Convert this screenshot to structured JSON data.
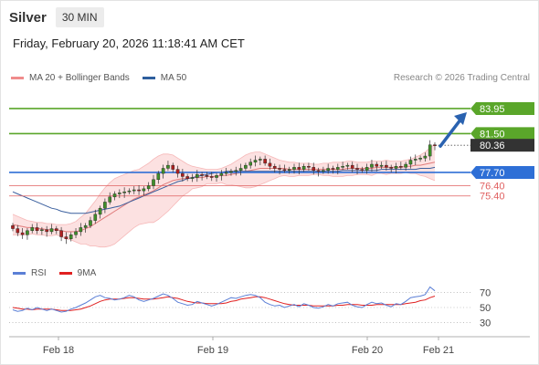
{
  "header": {
    "symbol": "Silver",
    "period": "30 MIN",
    "timestamp": "Friday, February 20, 2026 11:18:41 AM CET"
  },
  "legend": {
    "bollinger": {
      "label": "MA 20 + Bollinger Bands",
      "color": "#f08c8c"
    },
    "ma50": {
      "label": "MA 50",
      "color": "#2e5f9e"
    },
    "rsi": {
      "label": "RSI",
      "color": "#5b7fd6"
    },
    "rsi_ma": {
      "label": "9MA",
      "color": "#e02020"
    }
  },
  "copyright": "Research © 2026 Trading Central",
  "chart_data": [
    {
      "type": "candlestick",
      "title": "",
      "x_labels": [
        "Feb 18",
        "Feb 19",
        "Feb 20",
        "Feb 21"
      ],
      "ylim": [
        68.5,
        86.0
      ],
      "levels": [
        {
          "value": 83.95,
          "label": "83.95",
          "kind": "resistance",
          "color": "#5aa62a"
        },
        {
          "value": 81.5,
          "label": "81.50",
          "kind": "resistance",
          "color": "#5aa62a"
        },
        {
          "value": 80.36,
          "label": "80.36",
          "kind": "last",
          "color": "#333333"
        },
        {
          "value": 77.7,
          "label": "77.70",
          "kind": "pivot",
          "color": "#2e6fd6"
        },
        {
          "value": 76.4,
          "label": "76.40",
          "kind": "support",
          "color": "#e06060"
        },
        {
          "value": 75.4,
          "label": "75.40",
          "kind": "support",
          "color": "#e06060"
        }
      ],
      "target_arrow": {
        "from": 80.36,
        "to": 83.95
      },
      "closes": [
        72.2,
        71.8,
        71.6,
        72.0,
        72.3,
        72.0,
        72.1,
        71.9,
        72.2,
        72.0,
        71.4,
        71.2,
        71.6,
        71.9,
        72.3,
        72.5,
        73.0,
        73.6,
        74.2,
        74.8,
        75.3,
        75.6,
        75.7,
        75.8,
        75.9,
        76.0,
        75.9,
        76.1,
        76.4,
        77.0,
        77.6,
        78.1,
        78.4,
        78.0,
        77.6,
        77.3,
        77.1,
        77.2,
        77.5,
        77.4,
        77.3,
        77.2,
        77.4,
        77.6,
        77.7,
        77.8,
        77.9,
        78.1,
        78.4,
        78.7,
        78.9,
        79.0,
        78.6,
        78.3,
        78.1,
        78.0,
        77.9,
        78.0,
        78.2,
        78.0,
        78.3,
        78.2,
        77.9,
        77.8,
        77.9,
        78.1,
        78.0,
        78.2,
        78.3,
        78.4,
        78.1,
        78.0,
        77.9,
        78.2,
        78.5,
        78.3,
        78.4,
        78.2,
        78.1,
        78.3,
        78.2,
        78.5,
        78.9,
        79.0,
        79.1,
        79.3,
        80.4,
        80.36
      ],
      "ma20": [
        72.6,
        72.5,
        72.4,
        72.3,
        72.3,
        72.2,
        72.2,
        72.1,
        72.1,
        72.1,
        72.0,
        71.9,
        71.9,
        71.9,
        72.0,
        72.2,
        72.4,
        72.7,
        73.0,
        73.3,
        73.6,
        73.9,
        74.2,
        74.5,
        74.8,
        75.1,
        75.3,
        75.5,
        75.7,
        75.9,
        76.2,
        76.5,
        76.7,
        76.9,
        77.0,
        77.1,
        77.1,
        77.2,
        77.2,
        77.2,
        77.3,
        77.3,
        77.3,
        77.4,
        77.4,
        77.5,
        77.6,
        77.7,
        77.8,
        77.9,
        78.0,
        78.1,
        78.1,
        78.1,
        78.1,
        78.1,
        78.1,
        78.0,
        78.0,
        78.0,
        78.0,
        78.0,
        78.0,
        78.0,
        78.0,
        78.0,
        78.0,
        78.0,
        78.0,
        78.1,
        78.1,
        78.1,
        78.1,
        78.1,
        78.1,
        78.2,
        78.2,
        78.2,
        78.2,
        78.2,
        78.2,
        78.3,
        78.3,
        78.4,
        78.4,
        78.5,
        78.6,
        78.7
      ],
      "bb_upper": [
        73.6,
        73.4,
        73.2,
        73.0,
        72.9,
        72.8,
        72.8,
        72.7,
        72.7,
        72.6,
        72.6,
        72.6,
        72.7,
        72.9,
        73.3,
        73.7,
        74.3,
        74.9,
        75.6,
        76.2,
        76.7,
        77.1,
        77.3,
        77.5,
        77.7,
        77.9,
        78.0,
        78.3,
        78.6,
        79.0,
        79.3,
        79.5,
        79.5,
        79.4,
        79.1,
        78.8,
        78.5,
        78.3,
        78.2,
        78.1,
        78.0,
        78.0,
        78.0,
        78.1,
        78.3,
        78.5,
        78.8,
        79.1,
        79.4,
        79.6,
        79.7,
        79.7,
        79.5,
        79.3,
        79.1,
        78.9,
        78.8,
        78.7,
        78.7,
        78.6,
        78.6,
        78.6,
        78.5,
        78.5,
        78.6,
        78.6,
        78.7,
        78.7,
        78.7,
        78.8,
        78.8,
        78.7,
        78.7,
        78.7,
        78.8,
        78.8,
        78.8,
        78.9,
        78.8,
        78.8,
        78.8,
        78.9,
        79.0,
        79.2,
        79.4,
        79.7,
        80.1,
        80.5
      ],
      "bb_lower": [
        71.6,
        71.6,
        71.6,
        71.6,
        71.7,
        71.6,
        71.6,
        71.5,
        71.5,
        71.6,
        71.4,
        71.2,
        71.1,
        70.9,
        70.7,
        70.7,
        70.5,
        70.5,
        70.4,
        70.4,
        70.5,
        70.7,
        71.1,
        71.5,
        71.9,
        72.3,
        72.6,
        72.7,
        72.8,
        72.8,
        73.1,
        73.5,
        73.9,
        74.4,
        74.9,
        75.4,
        75.7,
        76.1,
        76.2,
        76.3,
        76.6,
        76.6,
        76.6,
        76.7,
        76.5,
        76.5,
        76.4,
        76.3,
        76.2,
        76.2,
        76.3,
        76.5,
        76.7,
        76.9,
        77.1,
        77.3,
        77.4,
        77.3,
        77.3,
        77.4,
        77.4,
        77.4,
        77.5,
        77.5,
        77.4,
        77.4,
        77.3,
        77.3,
        77.3,
        77.4,
        77.4,
        77.5,
        77.5,
        77.5,
        77.4,
        77.6,
        77.6,
        77.5,
        77.6,
        77.6,
        77.6,
        77.7,
        77.6,
        77.6,
        77.4,
        77.3,
        77.1,
        76.9
      ],
      "ma50": [
        75.8,
        75.6,
        75.4,
        75.2,
        75.0,
        74.8,
        74.6,
        74.4,
        74.2,
        74.1,
        73.9,
        73.8,
        73.7,
        73.7,
        73.7,
        73.7,
        73.8,
        73.9,
        74.0,
        74.1,
        74.2,
        74.3,
        74.4,
        74.6,
        74.8,
        75.0,
        75.2,
        75.4,
        75.6,
        75.8,
        76.0,
        76.2,
        76.4,
        76.6,
        76.8,
        76.9,
        77.1,
        77.2,
        77.3,
        77.4,
        77.5,
        77.6,
        77.7,
        77.7,
        77.8,
        77.8,
        77.8,
        77.8,
        77.8,
        77.8,
        77.8,
        77.8,
        77.8,
        77.8,
        77.8,
        77.8,
        77.8,
        77.8,
        77.8,
        77.8,
        77.8,
        77.8,
        77.8,
        77.8,
        77.8,
        77.8,
        77.8,
        77.8,
        77.9,
        77.9,
        77.9,
        77.9,
        77.9,
        77.9,
        77.9,
        77.9,
        78.0,
        78.0,
        78.0,
        78.0,
        78.0,
        78.0,
        78.0,
        78.0,
        78.1,
        78.1,
        78.1,
        78.2
      ]
    },
    {
      "type": "line",
      "title": "",
      "ylim": [
        20,
        80
      ],
      "y_ticks": [
        70,
        50,
        30
      ],
      "rsi": [
        47,
        45,
        46,
        49,
        47,
        50,
        48,
        46,
        48,
        46,
        44,
        45,
        48,
        50,
        53,
        56,
        60,
        64,
        66,
        63,
        62,
        60,
        61,
        63,
        66,
        64,
        60,
        58,
        60,
        62,
        65,
        68,
        66,
        62,
        57,
        55,
        53,
        54,
        58,
        56,
        54,
        52,
        54,
        57,
        60,
        63,
        62,
        64,
        66,
        67,
        66,
        63,
        57,
        54,
        52,
        53,
        50,
        52,
        54,
        51,
        55,
        53,
        50,
        49,
        51,
        54,
        52,
        55,
        56,
        57,
        53,
        51,
        50,
        54,
        57,
        55,
        56,
        53,
        51,
        55,
        54,
        58,
        63,
        64,
        65,
        67,
        77,
        72
      ],
      "rsi_ma": [
        50,
        49,
        48,
        48,
        47,
        48,
        48,
        48,
        48,
        47,
        46,
        46,
        46,
        47,
        48,
        50,
        52,
        55,
        58,
        60,
        61,
        61,
        61,
        62,
        63,
        63,
        62,
        61,
        61,
        61,
        62,
        63,
        64,
        63,
        62,
        60,
        58,
        57,
        56,
        56,
        55,
        55,
        55,
        55,
        56,
        58,
        59,
        61,
        62,
        63,
        64,
        64,
        63,
        61,
        59,
        57,
        55,
        54,
        53,
        53,
        53,
        53,
        52,
        52,
        52,
        52,
        52,
        53,
        53,
        54,
        54,
        54,
        53,
        53,
        53,
        54,
        54,
        54,
        54,
        54,
        54,
        55,
        56,
        57,
        59,
        60,
        63,
        65
      ]
    }
  ]
}
